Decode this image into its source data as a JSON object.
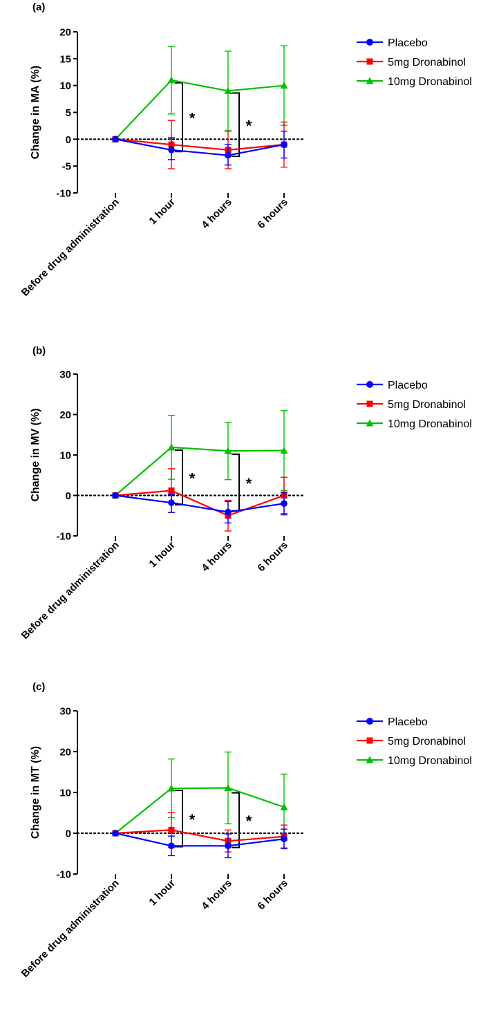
{
  "chart_data": [
    {
      "panel": "(a)",
      "type": "line",
      "ylabel": "Change in MA (%)",
      "ylim": [
        -10,
        20
      ],
      "yticks": [
        -10,
        -5,
        0,
        5,
        10,
        15,
        20
      ],
      "categories": [
        "Before drug administration",
        "1 hour",
        "4 hours",
        "6 hours"
      ],
      "series": [
        {
          "name": "Placebo",
          "color": "#0000ff",
          "marker": "circle",
          "values": [
            0,
            -2,
            -3,
            -1
          ],
          "err_upper": [
            0,
            0.3,
            -1,
            1.5
          ],
          "err_lower": [
            0,
            -3.8,
            -4.8,
            -3.5
          ]
        },
        {
          "name": "5mg Dronabinol",
          "color": "#ff0000",
          "marker": "square",
          "values": [
            0,
            -1,
            -2,
            -1
          ],
          "err_upper": [
            0,
            3.5,
            1.5,
            3.2
          ],
          "err_lower": [
            0,
            -5.5,
            -5.5,
            -5.2
          ]
        },
        {
          "name": "10mg Dronabinol",
          "color": "#00c000",
          "marker": "triangle",
          "values": [
            0,
            11,
            9,
            10
          ],
          "err_upper": [
            0,
            17.3,
            16.4,
            17.4
          ],
          "err_lower": [
            0,
            4.7,
            1.6,
            2.6
          ]
        }
      ],
      "significance": [
        {
          "category_index": 1,
          "top": 10.5,
          "bottom": -2.3,
          "label": "*"
        },
        {
          "category_index": 2,
          "top": 8.6,
          "bottom": -3.2,
          "label": "*"
        }
      ]
    },
    {
      "panel": "(b)",
      "type": "line",
      "ylabel": "Change in MV (%)",
      "ylim": [
        -10,
        30
      ],
      "yticks": [
        -10,
        0,
        10,
        20,
        30
      ],
      "categories": [
        "Before drug administration",
        "1 hour",
        "4 hours",
        "6 hours"
      ],
      "series": [
        {
          "name": "Placebo",
          "color": "#0000ff",
          "marker": "circle",
          "values": [
            0,
            -1.8,
            -4.1,
            -2
          ],
          "err_upper": [
            0,
            0.3,
            -1.5,
            0.8
          ],
          "err_lower": [
            0,
            -4.2,
            -6.8,
            -4.8
          ]
        },
        {
          "name": "5mg Dronabinol",
          "color": "#ff0000",
          "marker": "square",
          "values": [
            0,
            1.2,
            -5,
            0
          ],
          "err_upper": [
            0,
            6.6,
            -1.2,
            4.5
          ],
          "err_lower": [
            0,
            -4.2,
            -8.8,
            -4.5
          ]
        },
        {
          "name": "10mg Dronabinol",
          "color": "#00c000",
          "marker": "triangle",
          "values": [
            0,
            11.9,
            11,
            11.1
          ],
          "err_upper": [
            0,
            19.8,
            18.1,
            21
          ],
          "err_lower": [
            0,
            4,
            3.9,
            1.2
          ]
        }
      ],
      "significance": [
        {
          "category_index": 1,
          "top": 11.2,
          "bottom": -2.3,
          "label": "*"
        },
        {
          "category_index": 2,
          "top": 10.2,
          "bottom": -3.8,
          "label": "*"
        }
      ]
    },
    {
      "panel": "(c)",
      "type": "line",
      "ylabel": "Change in MT (%)",
      "ylim": [
        -10,
        30
      ],
      "yticks": [
        -10,
        0,
        10,
        20,
        30
      ],
      "categories": [
        "Before drug administration",
        "1 hour",
        "4 hours",
        "6 hours"
      ],
      "series": [
        {
          "name": "Placebo",
          "color": "#0000ff",
          "marker": "circle",
          "values": [
            0,
            -3.1,
            -3.1,
            -1.4
          ],
          "err_upper": [
            0,
            -0.7,
            -0.2,
            1
          ],
          "err_lower": [
            0,
            -5.5,
            -6,
            -3.8
          ]
        },
        {
          "name": "5mg Dronabinol",
          "color": "#ff0000",
          "marker": "square",
          "values": [
            0,
            0.8,
            -1.9,
            -0.8
          ],
          "err_upper": [
            0,
            5.1,
            0.8,
            2
          ],
          "err_lower": [
            0,
            -3.5,
            -4.6,
            -3.6
          ]
        },
        {
          "name": "10mg Dronabinol",
          "color": "#00c000",
          "marker": "triangle",
          "values": [
            0,
            11,
            11.1,
            6.4
          ],
          "err_upper": [
            0,
            18.2,
            19.9,
            14.5
          ],
          "err_lower": [
            0,
            3.8,
            2.3,
            -1.7
          ]
        }
      ],
      "significance": [
        {
          "category_index": 1,
          "top": 10.5,
          "bottom": -3.3,
          "label": "*"
        },
        {
          "category_index": 2,
          "top": 9.9,
          "bottom": -3.5,
          "label": "*"
        }
      ]
    }
  ]
}
